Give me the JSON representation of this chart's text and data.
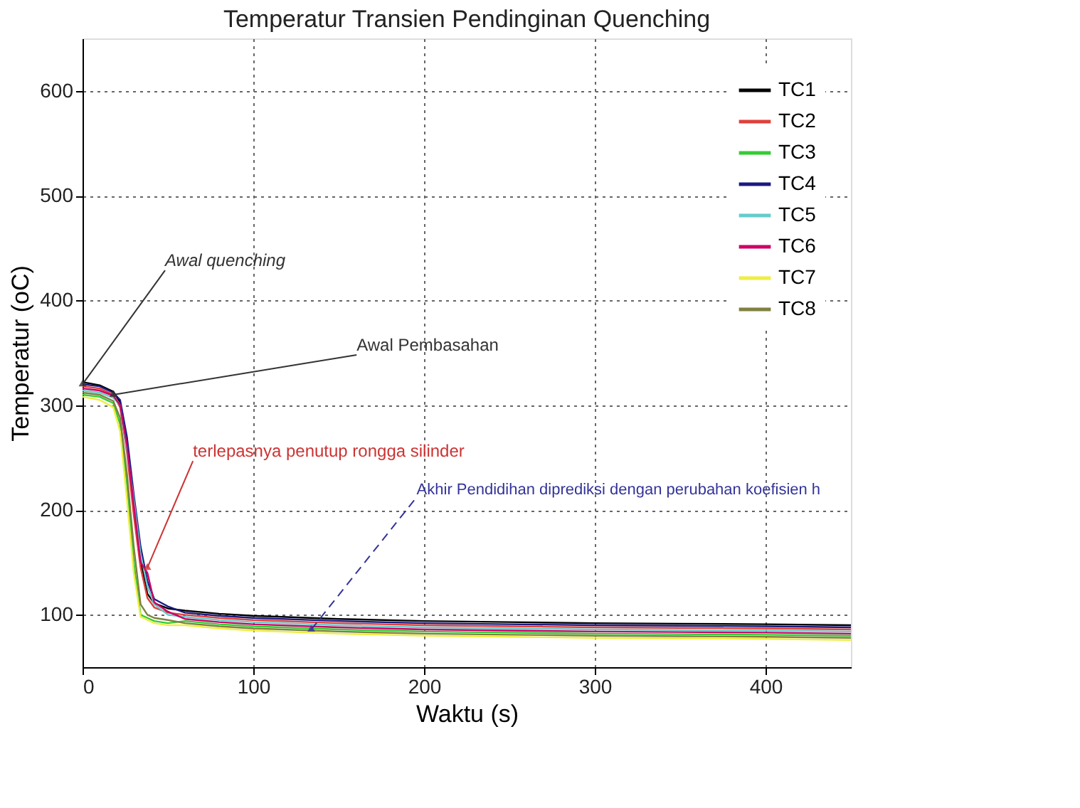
{
  "chart_data": {
    "type": "line",
    "title": "Temperatur Transien Pendinginan Quenching",
    "xlabel": "Waktu (s)",
    "ylabel": "Temperatur (oC)",
    "x": [
      0,
      10,
      18,
      22,
      26,
      30,
      34,
      38,
      42,
      50,
      60,
      80,
      100,
      150,
      200,
      250,
      300,
      350,
      400,
      450
    ],
    "series": [
      {
        "name": "TC1",
        "color": "#000000",
        "values": [
          322,
          319,
          313,
          303,
          262,
          205,
          152,
          120,
          111,
          106,
          104,
          101,
          99,
          96,
          94,
          93,
          92,
          91.5,
          91,
          90
        ]
      },
      {
        "name": "TC2",
        "color": "#e0403c",
        "values": [
          318,
          316,
          310,
          298,
          255,
          195,
          145,
          116,
          107,
          102,
          100,
          97,
          95,
          92,
          90,
          89,
          88,
          87.5,
          87,
          86
        ]
      },
      {
        "name": "TC3",
        "color": "#33cc33",
        "values": [
          310,
          308,
          302,
          282,
          225,
          150,
          100,
          97,
          94,
          92,
          94,
          91,
          89,
          86,
          84,
          83,
          82,
          81.5,
          81,
          80
        ]
      },
      {
        "name": "TC4",
        "color": "#1a1a80",
        "values": [
          320,
          318,
          312,
          305,
          270,
          215,
          165,
          132,
          115,
          108,
          102,
          99,
          97,
          94,
          92,
          91,
          90,
          89.5,
          89,
          88
        ]
      },
      {
        "name": "TC5",
        "color": "#66cccc",
        "values": [
          314,
          312,
          307,
          300,
          258,
          210,
          158,
          127,
          110,
          100,
          98,
          95,
          93,
          90,
          88,
          87,
          86,
          85.5,
          85,
          84
        ]
      },
      {
        "name": "TC6",
        "color": "#cc0066",
        "values": [
          316,
          314,
          309,
          300,
          262,
          205,
          150,
          140,
          112,
          103,
          96,
          93,
          91,
          88,
          86,
          85,
          84,
          83.5,
          83,
          82
        ]
      },
      {
        "name": "TC7",
        "color": "#eeee44",
        "values": [
          308,
          305,
          298,
          275,
          210,
          140,
          98,
          95,
          92,
          90,
          90,
          87,
          85,
          82,
          80,
          79,
          78,
          77.5,
          77,
          76
        ]
      },
      {
        "name": "TC8",
        "color": "#808040",
        "values": [
          312,
          310,
          304,
          288,
          235,
          165,
          110,
          100,
          97,
          95,
          92,
          89,
          87,
          84,
          82,
          81,
          80,
          79.5,
          79,
          78
        ]
      }
    ],
    "xlim": [
      0,
      450
    ],
    "xticks": [
      0,
      100,
      200,
      300,
      400
    ],
    "ylim": [
      50,
      650
    ],
    "yticks": [
      100,
      200,
      300,
      400,
      500,
      600
    ],
    "grid": true,
    "legend": "top right",
    "line_style": "solid",
    "marker": "none",
    "annotations": [
      {
        "text": "Awal quenching",
        "x": 0,
        "y": 320
      },
      {
        "text": "Awal Pembasahan",
        "x": 18,
        "y": 310
      },
      {
        "text": "terlepasnya penutup rongga silinder",
        "x": 38,
        "y": 145
      },
      {
        "text": "Akhir Pendidihan diprediksi dengan perubahan koefisien h",
        "x": 134,
        "y": 86
      }
    ]
  }
}
